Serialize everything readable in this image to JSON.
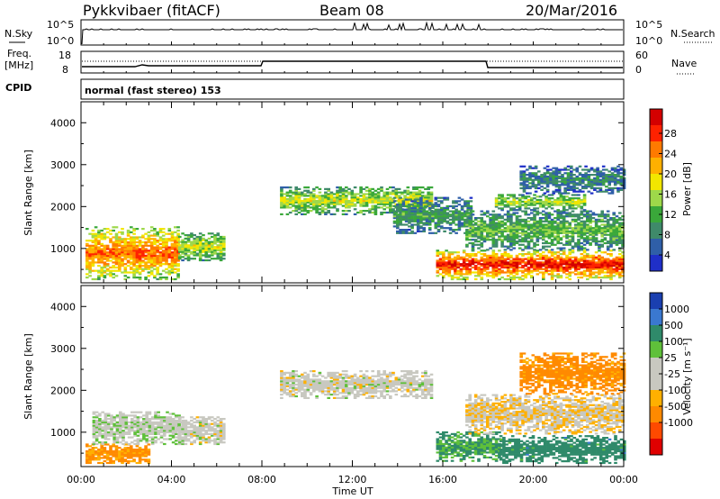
{
  "header": {
    "station": "Pykkvibaer (fitACF)",
    "beam": "Beam 08",
    "date": "20/Mar/2016"
  },
  "top_panel": {
    "left_label": "N.Sky",
    "right_label": "N.Search",
    "left_ticks": [
      "10^5",
      "10^0"
    ],
    "right_ticks": [
      "10^5",
      "10^0"
    ]
  },
  "freq_panel": {
    "left_label_1": "Freq.",
    "left_label_2": "[MHz]",
    "right_label": "Nave",
    "left_ticks": [
      "18",
      "8"
    ],
    "right_ticks": [
      "60",
      "0"
    ]
  },
  "cpid_panel": {
    "label": "CPID",
    "text": "normal (fast stereo) 153"
  },
  "power_panel": {
    "ylabel": "Slant Range [km]",
    "yticks": [
      "4000",
      "3000",
      "2000",
      "1000"
    ],
    "colorbar_label": "Power [dB]",
    "colorbar_ticks": [
      "28",
      "24",
      "20",
      "16",
      "12",
      "8",
      "4"
    ],
    "colorbar_colors": [
      "#d40000",
      "#ff2200",
      "#ff7a00",
      "#ffb000",
      "#f2e600",
      "#9ed84a",
      "#3aa83a",
      "#3f8a6a",
      "#2f5fa8",
      "#1f2fc8"
    ]
  },
  "velocity_panel": {
    "ylabel": "Slant Range [km]",
    "yticks": [
      "4000",
      "3000",
      "2000",
      "1000"
    ],
    "colorbar_label": "Velocity [m s⁻¹]",
    "colorbar_ticks": [
      "1000",
      "500",
      "100",
      "25",
      "-25",
      "-100",
      "-500",
      "-1000"
    ],
    "colorbar_colors": [
      "#1a3fb0",
      "#3a78d0",
      "#2f8a6a",
      "#5fc03a",
      "#c8c8c0",
      "#c8c8c0",
      "#ffb000",
      "#ff8a00",
      "#ff4a00",
      "#e00000"
    ]
  },
  "x_axis": {
    "ticks": [
      "00:00",
      "04:00",
      "08:00",
      "12:00",
      "16:00",
      "20:00",
      "00:00"
    ],
    "label": "Time UT"
  },
  "chart_data": [
    {
      "type": "heatmap",
      "name": "power",
      "xlim": [
        0,
        24
      ],
      "ylim": [
        180,
        4500
      ],
      "zlim": [
        0,
        32
      ],
      "blobs": [
        {
          "t0": 0.2,
          "t1": 4.3,
          "r0": 250,
          "r1": 1500,
          "p": 22
        },
        {
          "t0": 4.3,
          "t1": 6.3,
          "r0": 700,
          "r1": 1350,
          "p": 14
        },
        {
          "t0": 8.8,
          "t1": 15.5,
          "r0": 1800,
          "r1": 2450,
          "p": 14
        },
        {
          "t0": 13.8,
          "t1": 17.2,
          "r0": 1350,
          "r1": 2200,
          "p": 8
        },
        {
          "t0": 15.7,
          "t1": 24.0,
          "r0": 250,
          "r1": 950,
          "p": 26
        },
        {
          "t0": 17.0,
          "t1": 24.0,
          "r0": 950,
          "r1": 1900,
          "p": 10
        },
        {
          "t0": 18.3,
          "t1": 22.2,
          "r0": 1900,
          "r1": 2300,
          "p": 13
        },
        {
          "t0": 19.4,
          "t1": 24.0,
          "r0": 2300,
          "r1": 2950,
          "p": 6
        }
      ]
    },
    {
      "type": "heatmap",
      "name": "velocity",
      "xlim": [
        0,
        24
      ],
      "ylim": [
        180,
        4500
      ],
      "zlim": [
        -1000,
        1000
      ],
      "blobs": [
        {
          "t0": 0.2,
          "t1": 3.0,
          "r0": 250,
          "r1": 700,
          "v": -150
        },
        {
          "t0": 0.5,
          "t1": 4.3,
          "r0": 700,
          "r1": 1500,
          "v": 10
        },
        {
          "t0": 4.3,
          "t1": 6.3,
          "r0": 700,
          "r1": 1350,
          "v": 0
        },
        {
          "t0": 8.8,
          "t1": 15.5,
          "r0": 1800,
          "r1": 2450,
          "v": 0
        },
        {
          "t0": 15.7,
          "t1": 18.5,
          "r0": 300,
          "r1": 1000,
          "v": 120
        },
        {
          "t0": 18.5,
          "t1": 24.0,
          "r0": 250,
          "r1": 900,
          "v": 300
        },
        {
          "t0": 17.0,
          "t1": 24.0,
          "r0": 950,
          "r1": 1900,
          "v": -20
        },
        {
          "t0": 19.4,
          "t1": 24.0,
          "r0": 1900,
          "r1": 2900,
          "v": -200
        }
      ]
    }
  ]
}
